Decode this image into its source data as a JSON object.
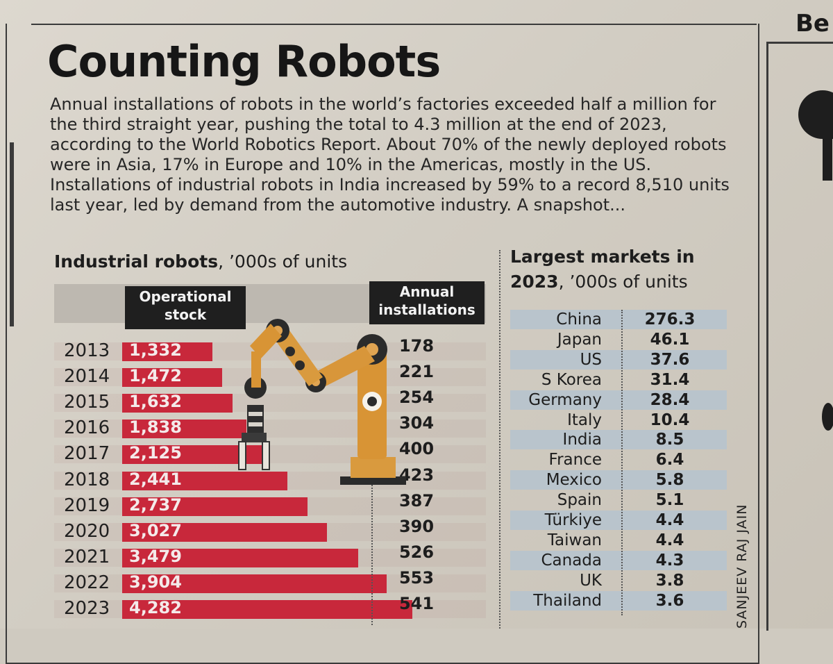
{
  "title": "Counting Robots",
  "intro": "Annual installations of robots in the world’s factories exceeded half a million for the third straight year, pushing the total to 4.3 million at the end of 2023, according to the World Robotics Report. About 70% of the newly deployed robots were in Asia, 17% in Europe and 10% in the Americas, mostly in the US. Installations of industrial robots in India increased by 59% to a record 8,510 units last year, led by demand from the automotive industry. A snapshot...",
  "side_heading": "Be",
  "credit": "SANJEEV RAJ JAIN",
  "colors": {
    "bar": "#c8283b",
    "header_bg": "#1f1f1f",
    "market_band": "#b9c4cc"
  },
  "icons": [
    "robot-arm-icon"
  ],
  "chart_data": [
    {
      "type": "bar",
      "title_bold": "Industrial robots",
      "title_rest": ", ’000s of units",
      "headers": {
        "stock": "Operational stock",
        "annual": "Annual installations"
      },
      "categories": [
        "2013",
        "2014",
        "2015",
        "2016",
        "2017",
        "2018",
        "2019",
        "2020",
        "2021",
        "2022",
        "2023"
      ],
      "series": [
        {
          "name": "Operational stock",
          "values": [
            1332,
            1472,
            1632,
            1838,
            2125,
            2441,
            2737,
            3027,
            3479,
            3904,
            4282
          ],
          "labels": [
            "1,332",
            "1,472",
            "1,632",
            "1,838",
            "2,125",
            "2,441",
            "2,737",
            "3,027",
            "3,479",
            "3,904",
            "4,282"
          ]
        },
        {
          "name": "Annual installations",
          "values": [
            178,
            221,
            254,
            304,
            400,
            423,
            387,
            390,
            526,
            553,
            541
          ]
        }
      ]
    },
    {
      "type": "table",
      "title_bold_1": "Largest markets in",
      "title_bold_2": "2023",
      "title_rest": ", ’000s of units",
      "rows": [
        {
          "country": "China",
          "value": "276.3"
        },
        {
          "country": "Japan",
          "value": "46.1"
        },
        {
          "country": "US",
          "value": "37.6"
        },
        {
          "country": "S Korea",
          "value": "31.4"
        },
        {
          "country": "Germany",
          "value": "28.4"
        },
        {
          "country": "Italy",
          "value": "10.4"
        },
        {
          "country": "India",
          "value": "8.5"
        },
        {
          "country": "France",
          "value": "6.4"
        },
        {
          "country": "Mexico",
          "value": "5.8"
        },
        {
          "country": "Spain",
          "value": "5.1"
        },
        {
          "country": "Türkiye",
          "value": "4.4"
        },
        {
          "country": "Taiwan",
          "value": "4.4"
        },
        {
          "country": "Canada",
          "value": "4.3"
        },
        {
          "country": "UK",
          "value": "3.8"
        },
        {
          "country": "Thailand",
          "value": "3.6"
        }
      ]
    }
  ]
}
